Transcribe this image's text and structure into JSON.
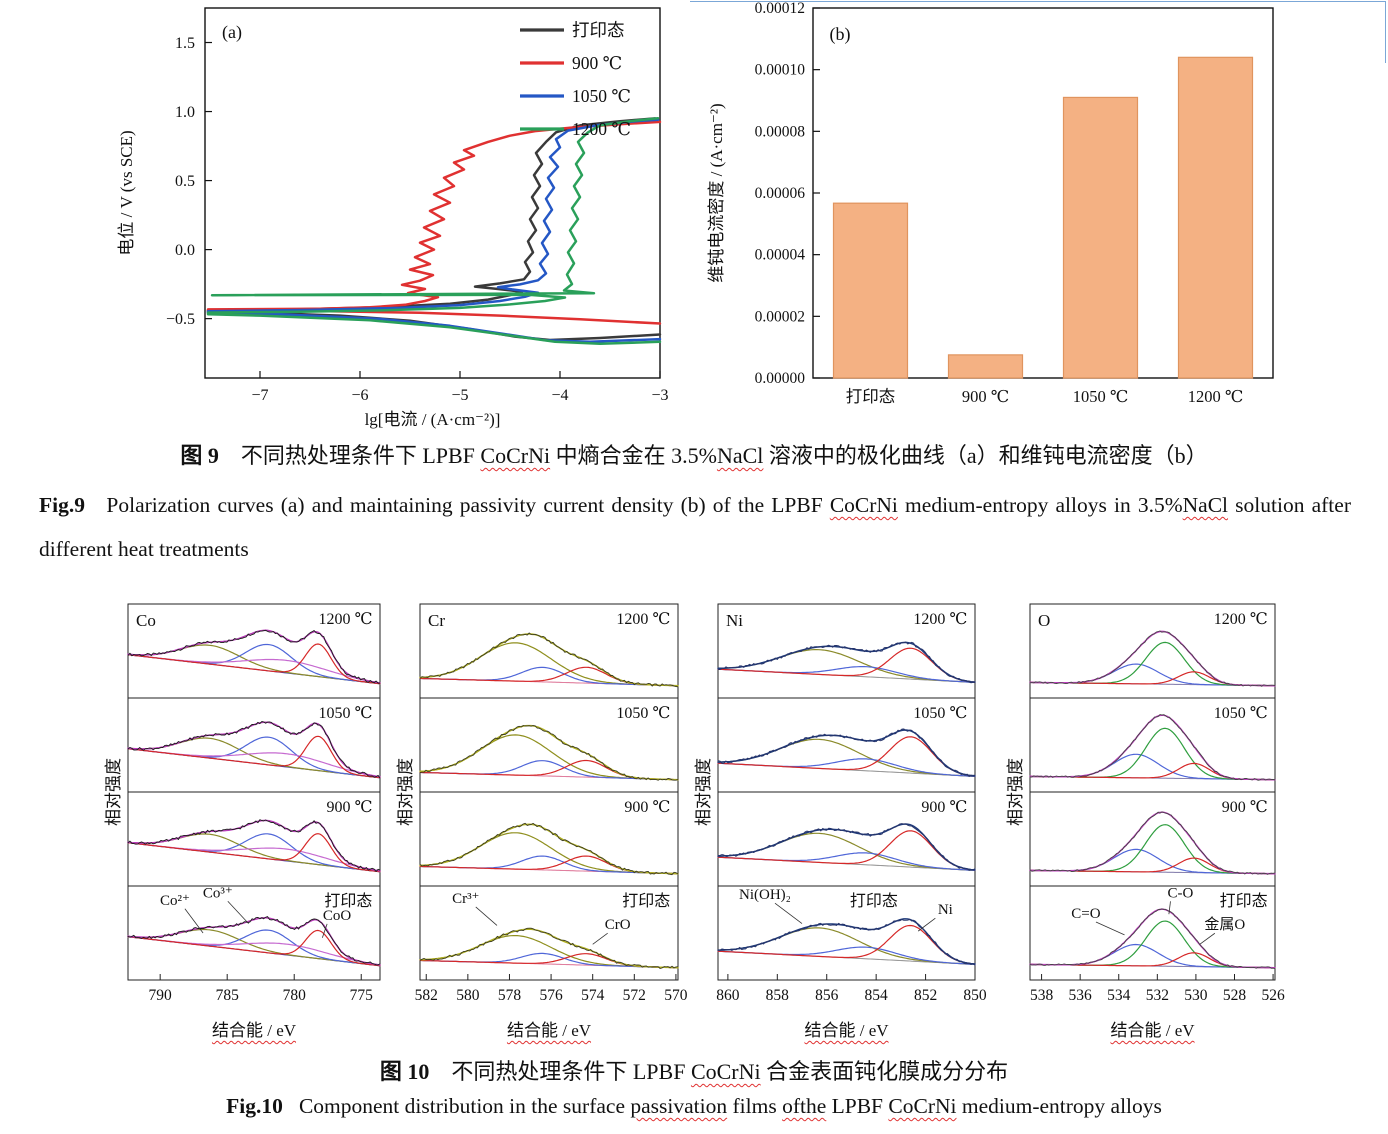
{
  "xps": {
    "ylabel": "相对强度",
    "xlabel": "结合能 / eV",
    "conditions": [
      "1200 ℃",
      "1050 ℃",
      "900 ℃",
      "打印态"
    ]
  },
  "chart_data": [
    {
      "id": "polarization",
      "type": "line",
      "tag": "(a)",
      "xlabel": "lg[电流 / (A·cm⁻²)]",
      "ylabel": "电位 / V (vs SCE)",
      "xlim": [
        -7.55,
        -3.0
      ],
      "ylim": [
        -0.93,
        1.75
      ],
      "xticks": [
        {
          "v": -7,
          "l": "−7"
        },
        {
          "v": -6,
          "l": "−6"
        },
        {
          "v": -5,
          "l": "−5"
        },
        {
          "v": -4,
          "l": "−4"
        },
        {
          "v": -3,
          "l": "−3"
        }
      ],
      "yticks": [
        {
          "v": -0.5,
          "l": "−0.5"
        },
        {
          "v": 0,
          "l": "0.0"
        },
        {
          "v": 0.5,
          "l": "0.5"
        },
        {
          "v": 1,
          "l": "1.0"
        },
        {
          "v": 1.5,
          "l": "1.5"
        }
      ],
      "series": [
        {
          "key": "as-printed",
          "label": "打印态",
          "color": "#3a3a3a",
          "points": [
            [
              -3.0,
              -0.615
            ],
            [
              -3.6,
              -0.64
            ],
            [
              -4.1,
              -0.655
            ],
            [
              -4.45,
              -0.63
            ],
            [
              -4.9,
              -0.575
            ],
            [
              -5.5,
              -0.515
            ],
            [
              -6.2,
              -0.478
            ],
            [
              -7.0,
              -0.458
            ],
            [
              -7.52,
              -0.452
            ],
            [
              -7.52,
              -0.44
            ],
            [
              -6.6,
              -0.432
            ],
            [
              -5.8,
              -0.418
            ],
            [
              -5.1,
              -0.392
            ],
            [
              -4.72,
              -0.362
            ],
            [
              -4.5,
              -0.33
            ],
            [
              -4.38,
              -0.305
            ],
            [
              -4.62,
              -0.285
            ],
            [
              -4.85,
              -0.268
            ],
            [
              -4.6,
              -0.245
            ],
            [
              -4.36,
              -0.215
            ],
            [
              -4.3,
              -0.16
            ],
            [
              -4.35,
              -0.09
            ],
            [
              -4.27,
              -0.02
            ],
            [
              -4.32,
              0.06
            ],
            [
              -4.24,
              0.14
            ],
            [
              -4.3,
              0.22
            ],
            [
              -4.22,
              0.3
            ],
            [
              -4.28,
              0.38
            ],
            [
              -4.2,
              0.46
            ],
            [
              -4.26,
              0.54
            ],
            [
              -4.18,
              0.62
            ],
            [
              -4.24,
              0.7
            ],
            [
              -4.14,
              0.78
            ],
            [
              -4.04,
              0.85
            ],
            [
              -3.8,
              0.9
            ],
            [
              -3.4,
              0.93
            ],
            [
              -3.05,
              0.95
            ]
          ]
        },
        {
          "key": "900c",
          "label": "900 ℃",
          "color": "#e03131",
          "points": [
            [
              -3.0,
              -0.535
            ],
            [
              -3.8,
              -0.505
            ],
            [
              -4.6,
              -0.478
            ],
            [
              -5.4,
              -0.458
            ],
            [
              -6.3,
              -0.447
            ],
            [
              -7.52,
              -0.442
            ],
            [
              -7.52,
              -0.433
            ],
            [
              -6.4,
              -0.428
            ],
            [
              -5.9,
              -0.418
            ],
            [
              -5.55,
              -0.4
            ],
            [
              -5.35,
              -0.372
            ],
            [
              -5.22,
              -0.345
            ],
            [
              -5.52,
              -0.315
            ],
            [
              -5.35,
              -0.285
            ],
            [
              -5.58,
              -0.255
            ],
            [
              -5.4,
              -0.225
            ],
            [
              -5.27,
              -0.185
            ],
            [
              -5.5,
              -0.145
            ],
            [
              -5.3,
              -0.105
            ],
            [
              -5.45,
              -0.055
            ],
            [
              -5.26,
              0.0
            ],
            [
              -5.4,
              0.05
            ],
            [
              -5.2,
              0.1
            ],
            [
              -5.36,
              0.16
            ],
            [
              -5.16,
              0.22
            ],
            [
              -5.3,
              0.28
            ],
            [
              -5.1,
              0.34
            ],
            [
              -5.26,
              0.4
            ],
            [
              -5.06,
              0.46
            ],
            [
              -5.16,
              0.52
            ],
            [
              -4.96,
              0.58
            ],
            [
              -5.06,
              0.63
            ],
            [
              -4.86,
              0.68
            ],
            [
              -4.96,
              0.72
            ],
            [
              -4.72,
              0.78
            ],
            [
              -4.5,
              0.825
            ],
            [
              -4.25,
              0.858
            ],
            [
              -3.9,
              0.882
            ],
            [
              -3.4,
              0.908
            ],
            [
              -3.0,
              0.925
            ]
          ]
        },
        {
          "key": "1050c",
          "label": "1050 ℃",
          "color": "#2457c5",
          "points": [
            [
              -3.0,
              -0.648
            ],
            [
              -3.7,
              -0.668
            ],
            [
              -4.15,
              -0.656
            ],
            [
              -4.55,
              -0.612
            ],
            [
              -5.1,
              -0.552
            ],
            [
              -5.8,
              -0.502
            ],
            [
              -6.8,
              -0.468
            ],
            [
              -7.52,
              -0.458
            ],
            [
              -7.52,
              -0.446
            ],
            [
              -6.5,
              -0.437
            ],
            [
              -5.6,
              -0.422
            ],
            [
              -5.0,
              -0.402
            ],
            [
              -4.6,
              -0.372
            ],
            [
              -4.35,
              -0.342
            ],
            [
              -4.22,
              -0.312
            ],
            [
              -4.48,
              -0.288
            ],
            [
              -4.62,
              -0.272
            ],
            [
              -4.4,
              -0.252
            ],
            [
              -4.22,
              -0.222
            ],
            [
              -4.14,
              -0.172
            ],
            [
              -4.2,
              -0.102
            ],
            [
              -4.12,
              -0.032
            ],
            [
              -4.18,
              0.048
            ],
            [
              -4.1,
              0.128
            ],
            [
              -4.16,
              0.208
            ],
            [
              -4.08,
              0.288
            ],
            [
              -4.14,
              0.368
            ],
            [
              -4.06,
              0.448
            ],
            [
              -4.12,
              0.52
            ],
            [
              -4.02,
              0.6
            ],
            [
              -4.1,
              0.67
            ],
            [
              -4.0,
              0.74
            ],
            [
              -4.04,
              0.8
            ],
            [
              -3.92,
              0.862
            ],
            [
              -3.62,
              0.902
            ],
            [
              -3.2,
              0.932
            ],
            [
              -3.02,
              0.94
            ]
          ]
        },
        {
          "key": "1200c",
          "label": "1200 ℃",
          "color": "#2aa05a",
          "points": [
            [
              -3.0,
              -0.668
            ],
            [
              -3.6,
              -0.682
            ],
            [
              -4.05,
              -0.668
            ],
            [
              -4.5,
              -0.622
            ],
            [
              -5.1,
              -0.562
            ],
            [
              -5.9,
              -0.512
            ],
            [
              -7.0,
              -0.478
            ],
            [
              -7.52,
              -0.468
            ],
            [
              -7.52,
              -0.456
            ],
            [
              -6.6,
              -0.45
            ],
            [
              -5.8,
              -0.44
            ],
            [
              -5.0,
              -0.422
            ],
            [
              -4.5,
              -0.397
            ],
            [
              -4.15,
              -0.372
            ],
            [
              -3.95,
              -0.347
            ],
            [
              -4.3,
              -0.328
            ],
            [
              -7.48,
              -0.33
            ],
            [
              -3.66,
              -0.316
            ],
            [
              -3.96,
              -0.296
            ],
            [
              -3.88,
              -0.25
            ],
            [
              -3.93,
              -0.18
            ],
            [
              -3.86,
              -0.1
            ],
            [
              -3.92,
              -0.02
            ],
            [
              -3.84,
              0.06
            ],
            [
              -3.9,
              0.14
            ],
            [
              -3.82,
              0.22
            ],
            [
              -3.88,
              0.3
            ],
            [
              -3.8,
              0.38
            ],
            [
              -3.86,
              0.46
            ],
            [
              -3.78,
              0.54
            ],
            [
              -3.84,
              0.62
            ],
            [
              -3.76,
              0.7
            ],
            [
              -3.82,
              0.78
            ],
            [
              -3.72,
              0.85
            ],
            [
              -3.6,
              0.9
            ],
            [
              -3.3,
              0.93
            ],
            [
              -3.02,
              0.952
            ]
          ]
        }
      ]
    },
    {
      "id": "passivity",
      "type": "bar",
      "tag": "(b)",
      "ylabel": "维钝电流密度 / (A·cm⁻²)",
      "categories": [
        "打印态",
        "900 ℃",
        "1050 ℃",
        "1200 ℃"
      ],
      "keys": [
        "as-printed",
        "900c",
        "1050c",
        "1200c"
      ],
      "values": [
        5.67e-05,
        7.5e-06,
        9.1e-05,
        0.000104
      ],
      "ylim": [
        0,
        0.00012
      ],
      "yticks": [
        {
          "v": 0,
          "l": "0.00000"
        },
        {
          "v": 2e-05,
          "l": "0.00002"
        },
        {
          "v": 4e-05,
          "l": "0.00004"
        },
        {
          "v": 6e-05,
          "l": "0.00006"
        },
        {
          "v": 8e-05,
          "l": "0.00008"
        },
        {
          "v": 0.0001,
          "l": "0.00010"
        },
        {
          "v": 0.00012,
          "l": "0.00012"
        }
      ],
      "bar_fill": "#f4b183",
      "bar_stroke": "#e0945e"
    },
    {
      "id": "xps-co",
      "type": "line",
      "element": "Co",
      "xlim": [
        792.4,
        773.6
      ],
      "xticks": [
        790,
        785,
        780,
        775
      ],
      "bg": {
        "l": 0.52,
        "r": 0.08,
        "color": "#3b3bae"
      },
      "envelope": "#b83cb8",
      "raw": "#1c1c1c",
      "noise": 0.022,
      "peaks": [
        {
          "c": 786.3,
          "w": 2.2,
          "a": 0.3,
          "color": "#8a8a2a"
        },
        {
          "c": 781.9,
          "w": 1.7,
          "a": 0.42,
          "color": "#4f66d8"
        },
        {
          "c": 780.6,
          "w": 3.0,
          "a": 0.2,
          "color": "#c66ad0"
        },
        {
          "c": 778.2,
          "w": 0.95,
          "a": 0.52,
          "color": "#d62828"
        }
      ],
      "scales": [
        0.95,
        1.0,
        0.9,
        0.82
      ],
      "annotations": [
        {
          "key": "co2plus",
          "t": "Co²⁺",
          "x": 788.9,
          "yf": 0.2,
          "tx": 786.8,
          "tyf": 0.5
        },
        {
          "key": "co3plus",
          "t": "Co³⁺",
          "x": 785.7,
          "yf": 0.12,
          "tx": 783.4,
          "tyf": 0.4
        },
        {
          "key": "coo",
          "t": "CoO",
          "x": 776.8,
          "yf": 0.36,
          "tx": 777.9,
          "tyf": 0.55
        }
      ]
    },
    {
      "id": "xps-cr",
      "type": "line",
      "element": "Cr",
      "xlim": [
        582.3,
        569.9
      ],
      "xticks": [
        582,
        580,
        578,
        576,
        574,
        572,
        570
      ],
      "bg": {
        "l": 0.16,
        "r": 0.05,
        "color": "#e07f9f"
      },
      "envelope": "#b0b022",
      "raw": "#3c3c20",
      "noise": 0.02,
      "peaks": [
        {
          "c": 577.7,
          "w": 1.7,
          "a": 0.58,
          "color": "#8f8f1e"
        },
        {
          "c": 576.4,
          "w": 1.0,
          "a": 0.22,
          "color": "#4f66d8"
        },
        {
          "c": 574.3,
          "w": 0.95,
          "a": 0.24,
          "color": "#d62828"
        }
      ],
      "scales": [
        1.0,
        1.05,
        0.95,
        0.72
      ],
      "annotations": [
        {
          "key": "cr3plus",
          "t": "Cr³⁺",
          "x": 580.1,
          "yf": 0.18,
          "tx": 578.6,
          "tyf": 0.42
        },
        {
          "key": "cro",
          "t": "CrO",
          "x": 572.8,
          "yf": 0.46,
          "tx": 574.0,
          "tyf": 0.62
        }
      ]
    },
    {
      "id": "xps-ni",
      "type": "line",
      "element": "Ni",
      "xlim": [
        860.4,
        850.0
      ],
      "xticks": [
        860,
        858,
        856,
        854,
        852,
        850
      ],
      "bg": {
        "l": 0.3,
        "r": 0.1,
        "color": "#9a9a9a"
      },
      "envelope": "#1f3a7a",
      "raw": "#27346a",
      "noise": 0.022,
      "cond_frac": 0.7,
      "peaks": [
        {
          "c": 856.3,
          "w": 1.6,
          "a": 0.44,
          "color": "#8a8a2a"
        },
        {
          "c": 854.4,
          "w": 1.2,
          "a": 0.18,
          "color": "#4f66d8"
        },
        {
          "c": 852.6,
          "w": 0.85,
          "a": 0.55,
          "color": "#d62828"
        }
      ],
      "scales": [
        0.85,
        1.0,
        1.0,
        0.98
      ],
      "annotations": [
        {
          "key": "nioh2",
          "t": "Ni(OH)₂",
          "x": 858.5,
          "yf": 0.14,
          "tx": 857.0,
          "tyf": 0.4
        },
        {
          "key": "ni",
          "t": "Ni",
          "x": 851.2,
          "yf": 0.3,
          "tx": 852.3,
          "tyf": 0.48
        }
      ]
    },
    {
      "id": "xps-o",
      "type": "line",
      "element": "O",
      "xlim": [
        538.6,
        525.9
      ],
      "xticks": [
        538,
        536,
        534,
        532,
        530,
        528,
        526
      ],
      "bg": {
        "l": 0.1,
        "r": 0.05,
        "color": "#8a84b0"
      },
      "envelope": "#bf3cbf",
      "raw": "#454545",
      "noise": 0.013,
      "peaks": [
        {
          "c": 533.1,
          "w": 1.15,
          "a": 0.34,
          "color": "#4f66d8"
        },
        {
          "c": 531.6,
          "w": 1.0,
          "a": 0.72,
          "color": "#2f9e3f"
        },
        {
          "c": 530.1,
          "w": 0.8,
          "a": 0.22,
          "color": "#d62828"
        }
      ],
      "scales": [
        0.88,
        1.05,
        1.0,
        0.95
      ],
      "annotations": [
        {
          "key": "c-double-o",
          "t": "C=O",
          "x": 535.7,
          "yf": 0.34,
          "tx": 533.7,
          "tyf": 0.52
        },
        {
          "key": "c-o",
          "t": "C-O",
          "x": 530.8,
          "yf": 0.12,
          "tx": 531.4,
          "tyf": 0.3
        },
        {
          "key": "metal-o",
          "t": "金属O",
          "x": 528.5,
          "yf": 0.46,
          "tx": 529.8,
          "tyf": 0.62
        }
      ]
    }
  ],
  "captions": {
    "fig9_zh": [
      {
        "t": "图 9",
        "b": true
      },
      {
        "t": "　不同热处理条件下 LPBF "
      },
      {
        "t": "CoCrNi",
        "w": true
      },
      {
        "t": " 中熵合金在 3.5%"
      },
      {
        "t": "NaCl",
        "w": true
      },
      {
        "t": " 溶液中的极化曲线（a）和维钝电流密度（b）"
      }
    ],
    "fig9_en": [
      {
        "t": "Fig.9",
        "b": true
      },
      {
        "t": "   Polarization curves (a) and maintaining passivity current density (b) of the LPBF "
      },
      {
        "t": "CoCrNi",
        "w": true
      },
      {
        "t": " medium-entropy alloys in 3.5%"
      },
      {
        "t": "NaCl",
        "w": true
      },
      {
        "t": " solution after different heat treatments"
      }
    ],
    "fig10_zh": [
      {
        "t": "图 10",
        "b": true
      },
      {
        "t": "　不同热处理条件下 LPBF "
      },
      {
        "t": "CoCrNi",
        "w": true
      },
      {
        "t": " 合金表面钝化膜成分分布"
      }
    ],
    "fig10_en": [
      {
        "t": "Fig.10",
        "b": true
      },
      {
        "t": "   Component distribution in the surface "
      },
      {
        "t": "passivation",
        "w": true
      },
      {
        "t": " films "
      },
      {
        "t": "ofthe",
        "w": true
      },
      {
        "t": " LPBF "
      },
      {
        "t": "CoCrNi",
        "w": true
      },
      {
        "t": " medium-entropy alloys"
      }
    ]
  }
}
